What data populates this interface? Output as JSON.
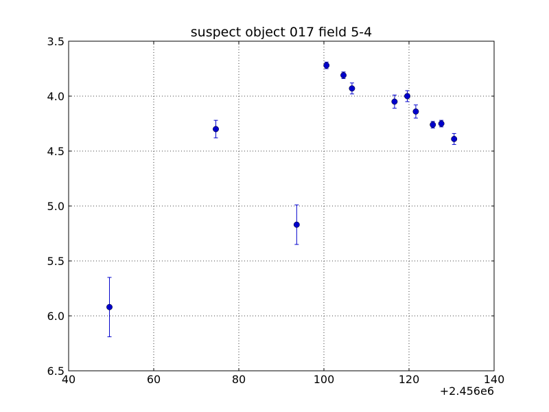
{
  "chart_data": {
    "type": "scatter",
    "title": "suspect object 017 field 5-4",
    "xlabel": "",
    "ylabel": "",
    "x_offset_label": "+2.456e6",
    "x_offset": 2456000,
    "xlim": [
      40,
      140
    ],
    "ylim": [
      3.5,
      6.5
    ],
    "y_inverted": true,
    "grid": true,
    "x_ticks": [
      40,
      60,
      80,
      100,
      120,
      140
    ],
    "x_tick_labels": [
      "40",
      "60",
      "80",
      "100",
      "120",
      "140"
    ],
    "y_ticks": [
      3.5,
      4.0,
      4.5,
      5.0,
      5.5,
      6.0,
      6.5
    ],
    "y_tick_labels": [
      "3.5",
      "4.0",
      "4.5",
      "5.0",
      "5.5",
      "6.0",
      "6.5"
    ],
    "series": [
      {
        "marker_color": "#0000cc",
        "points": [
          {
            "x": 49.6,
            "y": 5.92,
            "err": 0.27
          },
          {
            "x": 74.6,
            "y": 4.3,
            "err": 0.08
          },
          {
            "x": 93.6,
            "y": 5.17,
            "err": 0.18
          },
          {
            "x": 100.6,
            "y": 3.72,
            "err": 0.03
          },
          {
            "x": 104.6,
            "y": 3.81,
            "err": 0.03
          },
          {
            "x": 106.6,
            "y": 3.93,
            "err": 0.05
          },
          {
            "x": 116.6,
            "y": 4.05,
            "err": 0.06
          },
          {
            "x": 119.6,
            "y": 4.0,
            "err": 0.05
          },
          {
            "x": 121.6,
            "y": 4.14,
            "err": 0.06
          },
          {
            "x": 125.6,
            "y": 4.26,
            "err": 0.03
          },
          {
            "x": 127.6,
            "y": 4.25,
            "err": 0.03
          },
          {
            "x": 130.6,
            "y": 4.39,
            "err": 0.05
          }
        ]
      }
    ]
  }
}
